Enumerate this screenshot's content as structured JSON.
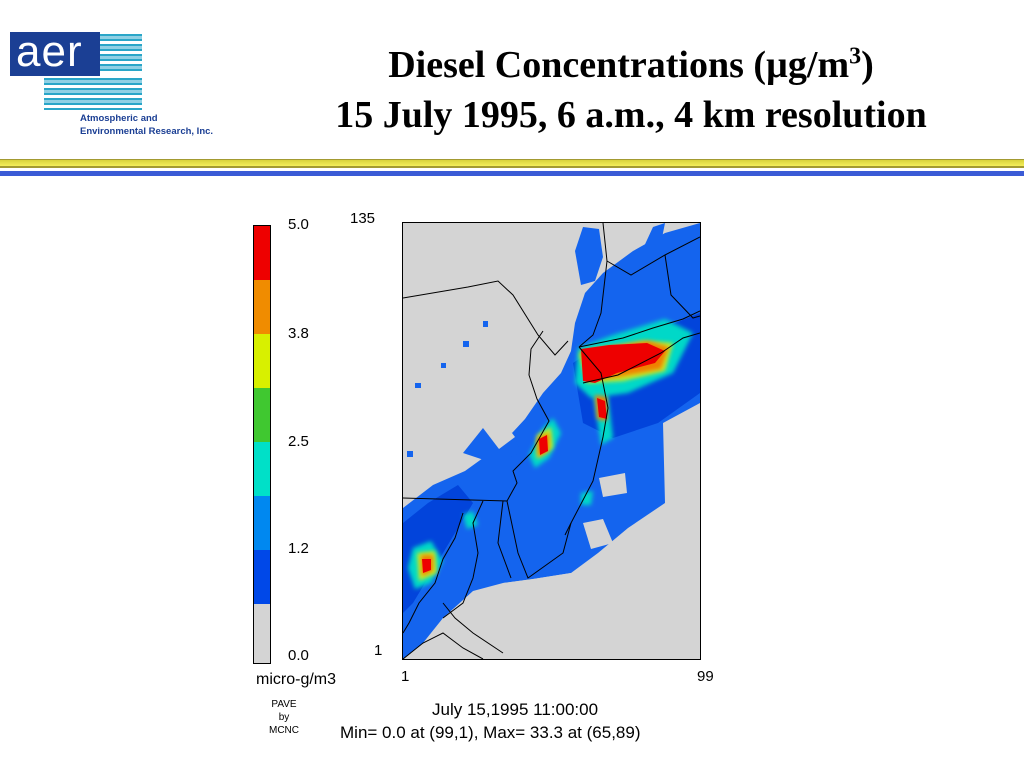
{
  "logo": {
    "text": "aer",
    "line1": "Atmospheric and",
    "line2": "Environmental Research, Inc."
  },
  "title": {
    "line1": "Diesel Concentrations (µg/m",
    "line1_sup": "3",
    "line1_end": ")",
    "line2": "15 July 1995, 6 a.m., 4 km resolution"
  },
  "colorbar": {
    "labels": [
      "5.0",
      "3.8",
      "2.5",
      "1.2",
      "0.0"
    ],
    "units": "micro-g/m3",
    "colors": [
      "#ee0000",
      "#f08c00",
      "#d8f000",
      "#40c830",
      "#00e0c8",
      "#0088f0",
      "#0048e8",
      "#d4d4d4"
    ]
  },
  "credit": {
    "line1": "PAVE",
    "line2": "by",
    "line3": "MCNC"
  },
  "map_axes": {
    "y_top": "135",
    "y_bottom": "1",
    "x_left": "1",
    "x_right": "99"
  },
  "caption": {
    "time": "July 15,1995 11:00:00",
    "minmax": "Min=  0.0 at (99,1), Max= 33.3 at (65,89)"
  }
}
